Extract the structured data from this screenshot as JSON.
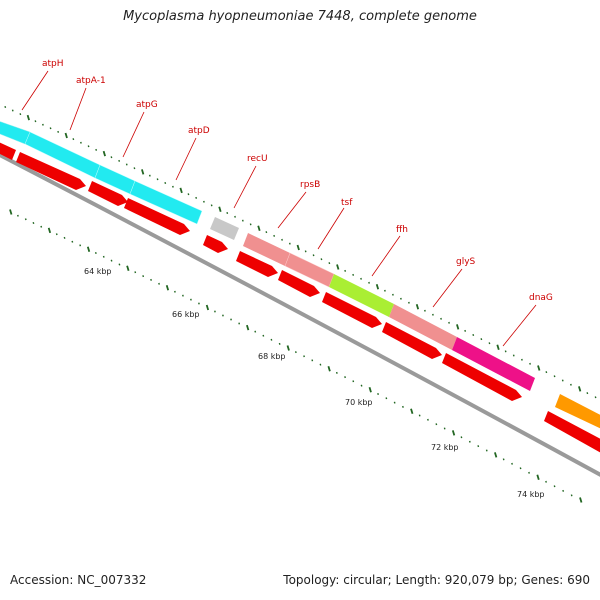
{
  "title": "Mycoplasma hyopneumoniae 7448, complete genome",
  "accession": "Accession: NC_007332",
  "topology": "Topology: circular; Length: 920,079 bp; Genes: 690",
  "colors": {
    "atp": "#22eaf0",
    "recU": "#c8c8c8",
    "rps": "#f09090",
    "ffh": "#aaee33",
    "gly": "#ee1188",
    "dnaG": "#ff9900",
    "cds": "#ee0000",
    "ticks": "#226622",
    "backbone": "#999999"
  },
  "genes": [
    {
      "name": "atpH",
      "label": "atpH"
    },
    {
      "name": "atpA-1",
      "label": "atpA-1"
    },
    {
      "name": "atpG",
      "label": "atpG"
    },
    {
      "name": "atpD",
      "label": "atpD"
    },
    {
      "name": "recU",
      "label": "recU"
    },
    {
      "name": "rpsB",
      "label": "rpsB"
    },
    {
      "name": "tsf",
      "label": "tsf"
    },
    {
      "name": "ffh",
      "label": "ffh"
    },
    {
      "name": "glyS",
      "label": "glyS"
    },
    {
      "name": "dnaG",
      "label": "dnaG"
    }
  ],
  "kbp_labels": [
    "64 kbp",
    "66 kbp",
    "68 kbp",
    "70 kbp",
    "72 kbp",
    "74 kbp"
  ]
}
